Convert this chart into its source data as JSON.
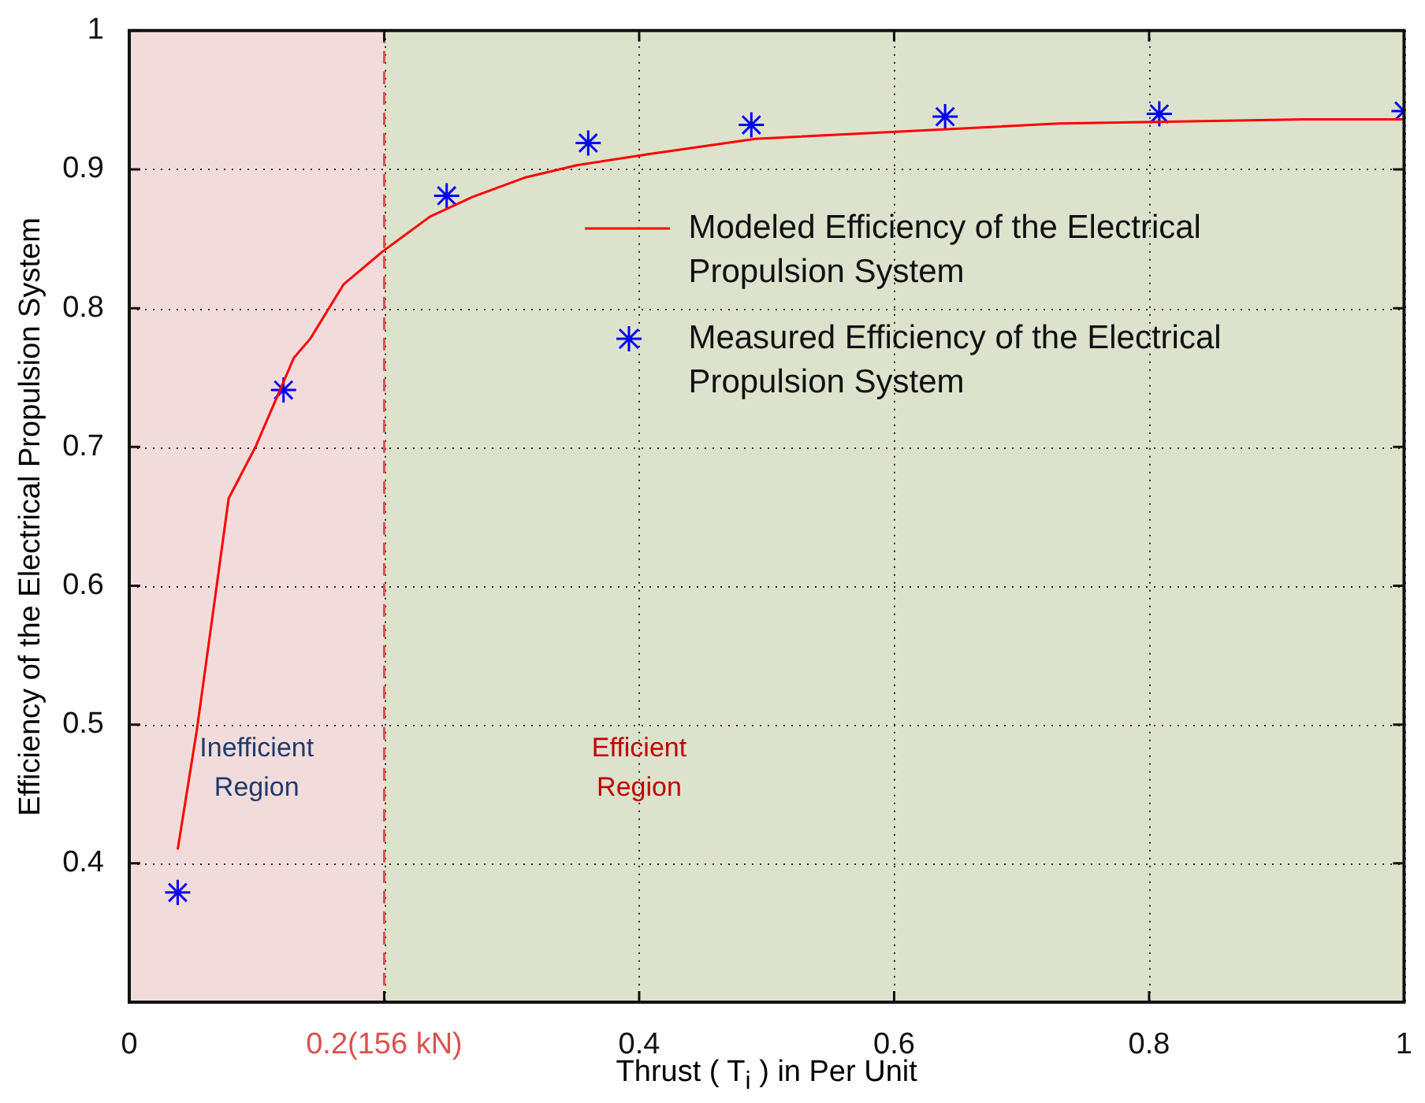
{
  "chart_data": {
    "type": "line",
    "xlabel": "Thrust ( T$_{i}$ ) in Per Unit",
    "ylabel": "Efficiency of the Electrical Propulsion System",
    "xlim": [
      0,
      1
    ],
    "xticks": [
      0,
      {
        "value": 0.2,
        "label": "0.2(156 kN)"
      },
      0.4,
      0.6,
      0.8,
      1
    ],
    "ylim": [
      0.3,
      1
    ],
    "yticks": [
      0.4,
      0.5,
      0.6,
      0.7,
      0.8,
      0.9,
      1
    ],
    "grid": true,
    "legend": "right",
    "series": [
      {
        "name": "Modeled Efficiency of the Electrical Propulsion System",
        "type": "line",
        "color": "#ff0000",
        "marker": "none",
        "line_style": "solid",
        "x": [
          0.038,
          0.053,
          0.068,
          0.078,
          0.099,
          0.129,
          0.142,
          0.168,
          0.199,
          0.236,
          0.269,
          0.31,
          0.351,
          0.408,
          0.491,
          0.729,
          0.922,
          1
        ],
        "values": [
          0.41,
          0.496,
          0.596,
          0.663,
          0.7,
          0.764,
          0.778,
          0.817,
          0.841,
          0.866,
          0.88,
          0.894,
          0.903,
          0.911,
          0.922,
          0.933,
          0.936,
          0.936
        ]
      },
      {
        "name": "Measured Efficiency of the Electrical Propulsion System",
        "type": "scatter",
        "color": "#0000ff",
        "marker": "cross",
        "x": [
          0.038,
          0.121,
          0.249,
          0.36,
          0.488,
          0.64,
          0.808,
          1
        ],
        "values": [
          0.379,
          0.741,
          0.881,
          0.919,
          0.932,
          0.938,
          0.94,
          0.942
        ]
      }
    ],
    "bands": [
      {
        "axis": "x",
        "from": 0,
        "to": 0.2,
        "label": "Inefficient Region",
        "color": "#f2dcdb"
      },
      {
        "axis": "x",
        "from": 0.2,
        "to": 1,
        "label": "Efficient Region",
        "color": "#dde2cc"
      }
    ],
    "ref_lines": [
      {
        "axis": "x",
        "value": 0.2,
        "color": "#d9534f",
        "line_style": "dashed"
      }
    ]
  }
}
